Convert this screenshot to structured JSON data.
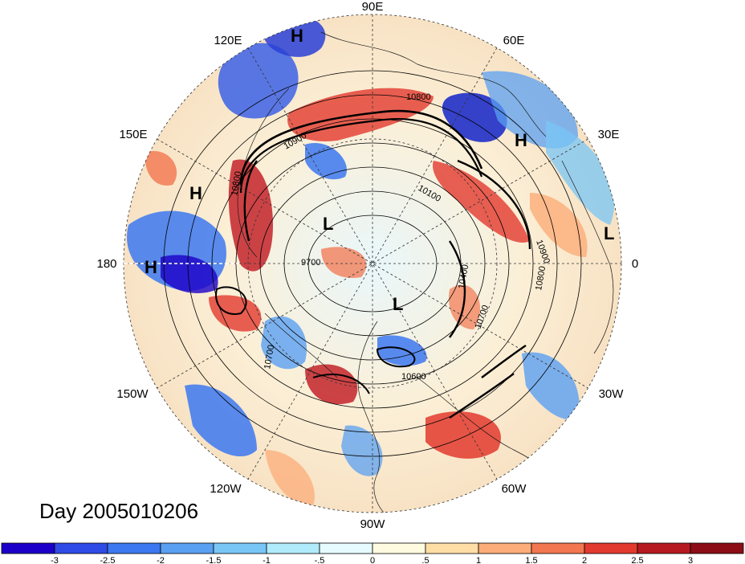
{
  "title": "Day 2005010206",
  "longitude_labels": [
    "90E",
    "60E",
    "30E",
    "0",
    "30W",
    "60W",
    "90W",
    "120W",
    "150W",
    "180",
    "150E",
    "120E"
  ],
  "pressure_systems": [
    {
      "type": "H",
      "region": "Siberia"
    },
    {
      "type": "H",
      "region": "Europe"
    },
    {
      "type": "H",
      "region": "Bering Sea"
    },
    {
      "type": "H",
      "region": "North Pacific"
    },
    {
      "type": "L",
      "region": "Arctic / East Siberian Sea"
    },
    {
      "type": "L",
      "region": "Hudson Bay"
    },
    {
      "type": "L",
      "region": "Western Africa"
    }
  ],
  "contour_labels": [
    "10800",
    "10900",
    "10800",
    "10100",
    "9700",
    "10400",
    "10900",
    "10800",
    "10700",
    "10600",
    "10700"
  ],
  "colorbar": {
    "ticks": [
      "-3",
      "-2.5",
      "-2",
      "-1.5",
      "-1",
      "-.5",
      "0",
      ".5",
      "1",
      "1.5",
      "2",
      "2.5",
      "3"
    ],
    "colors": [
      "#1c00c8",
      "#2f4be6",
      "#3c78f0",
      "#5aa0f2",
      "#78c6f6",
      "#b0ebfb",
      "#e6fbff",
      "#fffbe0",
      "#ffdea6",
      "#fcac78",
      "#f2764f",
      "#e23a2e",
      "#b51a20",
      "#8c0d16"
    ]
  },
  "colors": {
    "projection_center": "#ffffff",
    "contour": "#000000",
    "coastline": "#1a1a1a"
  }
}
